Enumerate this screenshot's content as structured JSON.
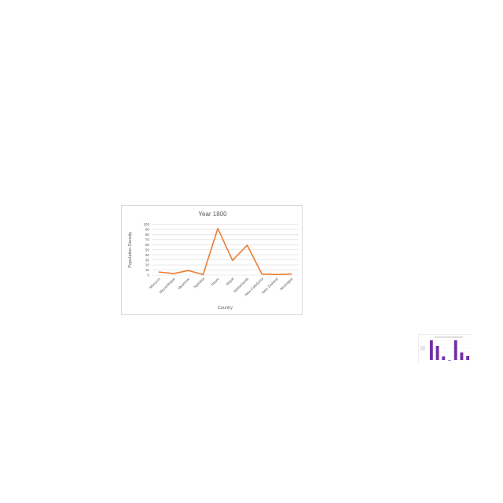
{
  "chart_data": {
    "type": "line",
    "title": "Year 1800",
    "xlabel": "Country",
    "ylabel": "Population Density",
    "categories": [
      "Morocco",
      "Mozambique",
      "Myanmar",
      "Namibia",
      "Nauru",
      "Nepal",
      "Netherlands",
      "New Caledonia",
      "New Zealand",
      "Nicaragua"
    ],
    "series": [
      {
        "values": [
          6,
          3,
          9,
          1,
          92,
          29,
          59,
          2,
          1,
          2
        ]
      }
    ],
    "ylim": [
      0,
      100
    ],
    "yticks": [
      0,
      10,
      20,
      30,
      40,
      50,
      60,
      70,
      80,
      90,
      100
    ],
    "grid": true,
    "line_color": "#ED7D31",
    "grid_color": "#d9d9d9"
  },
  "thumbnail_chart": {
    "type": "bar",
    "bar_color": "#7030A0",
    "values": [
      100,
      72,
      18,
      0,
      100,
      38,
      20
    ]
  }
}
